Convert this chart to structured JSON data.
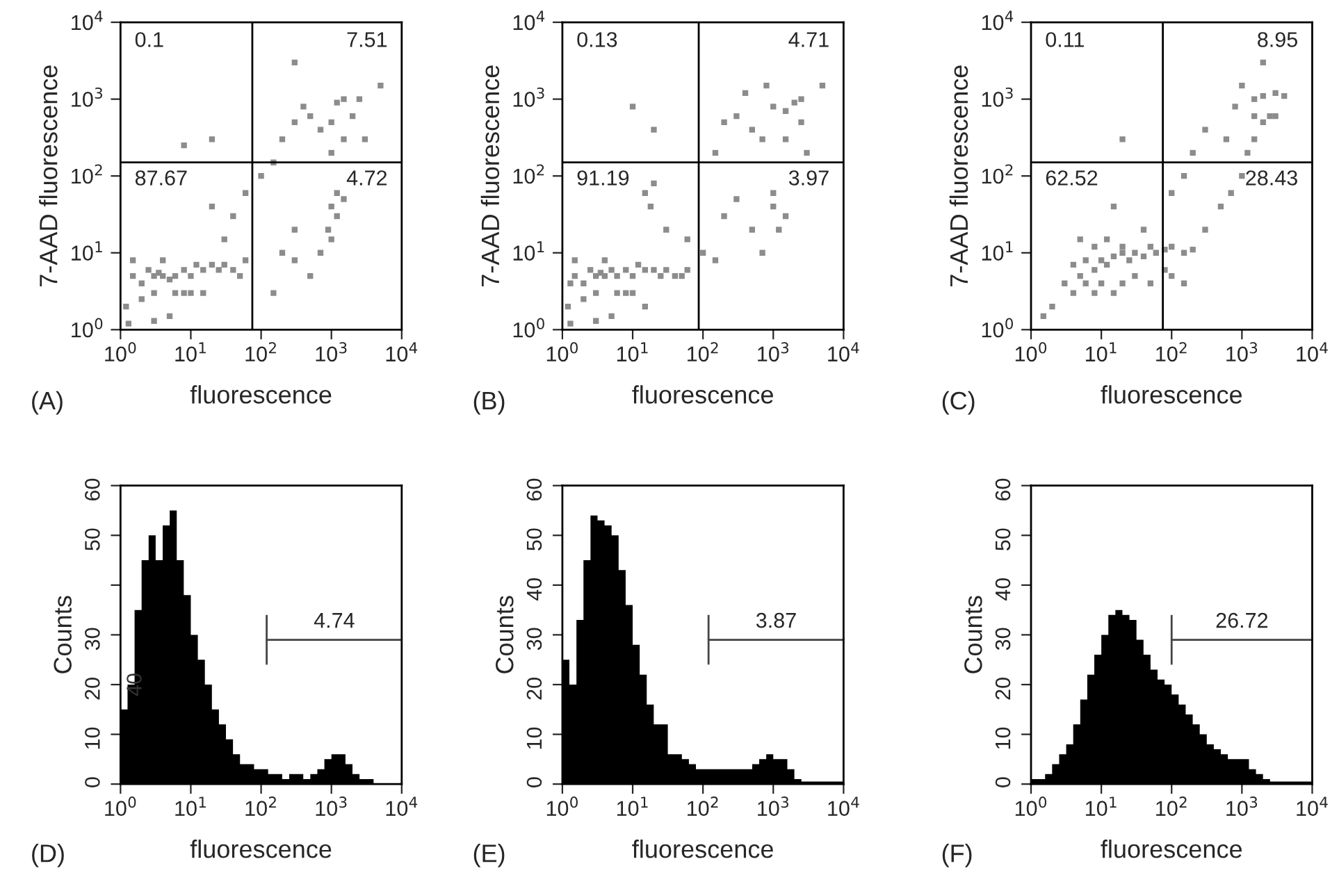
{
  "chart_data": [
    {
      "type": "scatter",
      "xlabel": "fluorescence",
      "ylabel": "7-AAD fluorescence",
      "log": "xy",
      "xlim": [
        1,
        10000
      ],
      "ylim": [
        1,
        10000
      ],
      "marker": "square",
      "xticks": [
        {
          "value": 1,
          "label": "10$^{0}$"
        },
        {
          "value": 10,
          "label": "10$^{1}$"
        },
        {
          "value": 100,
          "label": "10$^{2}$"
        },
        {
          "value": 1000,
          "label": "10$^{3}$"
        },
        {
          "value": 10000,
          "label": "10$^{4}$"
        }
      ],
      "yticks": [
        {
          "value": 1,
          "label": "10$^{0}$"
        },
        {
          "value": 10,
          "label": "10$^{1}$"
        },
        {
          "value": 100,
          "label": "10$^{2}$"
        },
        {
          "value": 1000,
          "label": "10$^{3}$"
        },
        {
          "value": 10000,
          "label": "10$^{4}$"
        }
      ],
      "series": [
        {
          "color": "#8c8c8c",
          "x": [
            1.5,
            2,
            2.5,
            3,
            3.5,
            4,
            5,
            6,
            8,
            10,
            12,
            15,
            20,
            25,
            30,
            40,
            1.2,
            1.5,
            2,
            3,
            4,
            6,
            8,
            1.3,
            3,
            5,
            10,
            15,
            50,
            60,
            30,
            40,
            20,
            60,
            100,
            150,
            200,
            300,
            400,
            500,
            700,
            1000,
            1200,
            1500,
            2000,
            1500,
            1000,
            1200,
            1000,
            1200,
            1500,
            900,
            1000,
            300,
            200,
            500,
            700,
            2500,
            3000,
            300,
            20,
            8,
            5000,
            150,
            300
          ],
          "values": [
            5,
            4,
            6,
            5,
            5.5,
            5,
            4.5,
            5,
            6,
            5,
            7,
            6,
            7,
            6,
            7,
            6,
            2,
            8,
            2.5,
            3,
            8,
            3,
            3,
            1.2,
            1.3,
            1.5,
            3,
            3,
            5,
            8,
            15,
            30,
            40,
            60,
            100,
            150,
            300,
            500,
            800,
            600,
            400,
            500,
            900,
            1000,
            600,
            300,
            200,
            60,
            40,
            30,
            50,
            20,
            15,
            20,
            10,
            5,
            10,
            1000,
            300,
            3000,
            300,
            250,
            1500,
            3,
            8
          ]
        }
      ],
      "ref_lines": [
        {
          "axis": "x",
          "value": 75,
          "color": "#000000"
        },
        {
          "axis": "y",
          "value": 150,
          "color": "#000000"
        }
      ],
      "annotations": [
        "0.1",
        "7.51",
        "87.67",
        "4.72",
        "(A)"
      ]
    },
    {
      "type": "scatter",
      "xlabel": "fluorescence",
      "ylabel": "7-AAD fluorescence",
      "log": "xy",
      "xlim": [
        1,
        10000
      ],
      "ylim": [
        1,
        10000
      ],
      "marker": "square",
      "xticks": [
        {
          "value": 1,
          "label": "10$^{0}$"
        },
        {
          "value": 10,
          "label": "10$^{1}$"
        },
        {
          "value": 100,
          "label": "10$^{2}$"
        },
        {
          "value": 1000,
          "label": "10$^{3}$"
        },
        {
          "value": 10000,
          "label": "10$^{4}$"
        }
      ],
      "yticks": [
        {
          "value": 1,
          "label": "10$^{0}$"
        },
        {
          "value": 10,
          "label": "10$^{1}$"
        },
        {
          "value": 100,
          "label": "10$^{2}$"
        },
        {
          "value": 1000,
          "label": "10$^{3}$"
        },
        {
          "value": 10000,
          "label": "10$^{4}$"
        }
      ],
      "series": [
        {
          "color": "#8c8c8c",
          "x": [
            1.3,
            1.5,
            2,
            2.5,
            3,
            3.5,
            4,
            5,
            6,
            8,
            10,
            12,
            15,
            20,
            25,
            30,
            40,
            1.2,
            1.5,
            2,
            3,
            4,
            6,
            8,
            1.3,
            3,
            5,
            10,
            15,
            50,
            60,
            15,
            20,
            18,
            30,
            60,
            100,
            150,
            200,
            300,
            500,
            700,
            1000,
            1500,
            2000,
            2500,
            1500,
            1000,
            1500,
            1200,
            1000,
            200,
            300,
            500,
            700,
            150,
            2500,
            3000,
            20,
            10,
            5000,
            400,
            800
          ],
          "values": [
            4,
            5,
            4,
            6,
            5,
            5.5,
            5,
            6,
            5,
            6,
            5,
            7,
            6,
            6,
            5,
            6,
            5,
            2,
            8,
            2.5,
            3,
            8,
            3,
            3,
            1.2,
            1.3,
            1.5,
            3,
            2,
            5,
            6,
            60,
            80,
            40,
            20,
            15,
            10,
            200,
            500,
            600,
            400,
            300,
            800,
            700,
            900,
            500,
            300,
            40,
            30,
            20,
            60,
            30,
            50,
            20,
            10,
            8,
            1000,
            200,
            400,
            800,
            1500,
            1200,
            1500
          ]
        }
      ],
      "ref_lines": [
        {
          "axis": "x",
          "value": 87,
          "color": "#000000"
        },
        {
          "axis": "y",
          "value": 150,
          "color": "#000000"
        }
      ],
      "annotations": [
        "0.13",
        "4.71",
        "91.19",
        "3.97",
        "(B)"
      ]
    },
    {
      "type": "scatter",
      "xlabel": "fluorescence",
      "ylabel": "7-AAD fluorescence",
      "log": "xy",
      "xlim": [
        1,
        10000
      ],
      "ylim": [
        1,
        10000
      ],
      "marker": "square",
      "xticks": [
        {
          "value": 1,
          "label": "10$^{0}$"
        },
        {
          "value": 10,
          "label": "10$^{1}$"
        },
        {
          "value": 100,
          "label": "10$^{2}$"
        },
        {
          "value": 1000,
          "label": "10$^{3}$"
        },
        {
          "value": 10000,
          "label": "10$^{4}$"
        }
      ],
      "yticks": [
        {
          "value": 1,
          "label": "10$^{0}$"
        },
        {
          "value": 10,
          "label": "10$^{1}$"
        },
        {
          "value": 100,
          "label": "10$^{2}$"
        },
        {
          "value": 1000,
          "label": "10$^{3}$"
        },
        {
          "value": 10000,
          "label": "10$^{4}$"
        }
      ],
      "series": [
        {
          "color": "#8c8c8c",
          "x": [
            4,
            5,
            6,
            8,
            10,
            12,
            15,
            20,
            25,
            30,
            40,
            50,
            60,
            80,
            100,
            150,
            200,
            3,
            4,
            6,
            8,
            10,
            15,
            20,
            30,
            50,
            80,
            100,
            150,
            5,
            8,
            12,
            20,
            40,
            2,
            1.5,
            300,
            500,
            700,
            1000,
            1200,
            1500,
            2000,
            1500,
            2000,
            3000,
            4000,
            1500,
            2500,
            3000,
            1000,
            800,
            600,
            200,
            150,
            300,
            20,
            15,
            100,
            2000
          ],
          "values": [
            7,
            5,
            8,
            6,
            8,
            7,
            9,
            10,
            8,
            10,
            9,
            12,
            10,
            11,
            12,
            10,
            11,
            4,
            3,
            4,
            3,
            4,
            3,
            4,
            5,
            4,
            6,
            5,
            4,
            15,
            12,
            15,
            12,
            20,
            2,
            1.5,
            20,
            40,
            60,
            100,
            200,
            300,
            500,
            600,
            1100,
            1200,
            1100,
            1000,
            600,
            600,
            1500,
            800,
            300,
            200,
            100,
            400,
            300,
            40,
            60,
            3000
          ]
        }
      ],
      "ref_lines": [
        {
          "axis": "x",
          "value": 75,
          "color": "#000000"
        },
        {
          "axis": "y",
          "value": 150,
          "color": "#000000"
        }
      ],
      "annotations": [
        "0.11",
        "8.95",
        "62.52",
        "28.43",
        "(C)"
      ]
    },
    {
      "type": "histogram",
      "xlabel": "fluorescence",
      "ylabel": "Counts",
      "log": "x",
      "xlim": [
        1,
        10000
      ],
      "ylim": [
        0,
        60
      ],
      "xticks": [
        {
          "value": 1,
          "label": "10$^{0}$"
        },
        {
          "value": 10,
          "label": "10$^{1}$"
        },
        {
          "value": 100,
          "label": "10$^{2}$"
        },
        {
          "value": 1000,
          "label": "10$^{3}$"
        },
        {
          "value": 10000,
          "label": "10$^{4}$"
        }
      ],
      "yticks": [
        0,
        10,
        20,
        30,
        {
          "value": 40,
          "label": null
        },
        50,
        60
      ],
      "bins": [
        1,
        1.259,
        1.585,
        1.995,
        2.512,
        3.162,
        3.981,
        5.012,
        6.31,
        7.943,
        10,
        12.59,
        15.85,
        19.95,
        25.12,
        31.62,
        39.81,
        50.12,
        63.1,
        79.43,
        100,
        125.9,
        158.5,
        199.5,
        251.2,
        316.2,
        398.1,
        501.2,
        631,
        794.3,
        1000,
        1259,
        1585,
        1995,
        2512,
        3162,
        3981,
        5012,
        6310,
        7943,
        10000
      ],
      "values": [
        15,
        20,
        35,
        45,
        50,
        45,
        52,
        55,
        45,
        38,
        30,
        25,
        20,
        15,
        12,
        9,
        6,
        4,
        4,
        3,
        3,
        2,
        2,
        1,
        2,
        2,
        1,
        2,
        3,
        5,
        6,
        6,
        4,
        2,
        1,
        1,
        0,
        0,
        0,
        0
      ],
      "color": "#000000",
      "series": [
        {
          "type": "line",
          "color": "#444444",
          "x": [
            120,
            10000
          ],
          "values": [
            29,
            29
          ],
          "errors": [
            5,
            null
          ]
        }
      ],
      "annotations": [
        "(D)",
        {
          "text": "40",
          "x": 1.2,
          "y": 20
        },
        {
          "text": "4.74",
          "x": 1100,
          "y": 29
        }
      ]
    },
    {
      "type": "histogram",
      "xlabel": "fluorescence",
      "ylabel": "Counts",
      "log": "x",
      "xlim": [
        1,
        10000
      ],
      "ylim": [
        0,
        60
      ],
      "xticks": [
        {
          "value": 1,
          "label": "10$^{0}$"
        },
        {
          "value": 10,
          "label": "10$^{1}$"
        },
        {
          "value": 100,
          "label": "10$^{2}$"
        },
        {
          "value": 1000,
          "label": "10$^{3}$"
        },
        {
          "value": 10000,
          "label": "10$^{4}$"
        }
      ],
      "yticks": [
        0,
        10,
        20,
        30,
        40,
        50,
        60
      ],
      "bins": [
        1,
        1.259,
        1.585,
        1.995,
        2.512,
        3.162,
        3.981,
        5.012,
        6.31,
        7.943,
        10,
        12.59,
        15.85,
        19.95,
        25.12,
        31.62,
        39.81,
        50.12,
        63.1,
        79.43,
        100,
        125.9,
        158.5,
        199.5,
        251.2,
        316.2,
        398.1,
        501.2,
        631,
        794.3,
        1000,
        1259,
        1585,
        1995,
        2512,
        3162,
        3981,
        5012,
        6310,
        7943,
        10000
      ],
      "values": [
        25,
        20,
        33,
        45,
        54,
        53,
        52,
        50,
        43,
        36,
        28,
        22,
        16,
        12,
        12,
        6,
        6,
        5,
        4,
        3,
        3,
        3,
        3,
        3,
        3,
        3,
        3,
        4,
        5,
        6,
        5,
        5,
        3,
        1,
        0.5,
        0.5,
        0.5,
        0.5,
        0.5,
        0.5
      ],
      "color": "#000000",
      "series": [
        {
          "type": "line",
          "color": "#444444",
          "x": [
            120,
            10000
          ],
          "values": [
            29,
            29
          ],
          "errors": [
            5,
            null
          ]
        }
      ],
      "annotations": [
        "(E)",
        {
          "text": "3.87",
          "x": 1100,
          "y": 29
        }
      ]
    },
    {
      "type": "histogram",
      "xlabel": "fluorescence",
      "ylabel": "Counts",
      "log": "x",
      "xlim": [
        1,
        10000
      ],
      "ylim": [
        0,
        60
      ],
      "xticks": [
        {
          "value": 1,
          "label": "10$^{0}$"
        },
        {
          "value": 10,
          "label": "10$^{1}$"
        },
        {
          "value": 100,
          "label": "10$^{2}$"
        },
        {
          "value": 1000,
          "label": "10$^{3}$"
        },
        {
          "value": 10000,
          "label": "10$^{4}$"
        }
      ],
      "yticks": [
        0,
        10,
        20,
        30,
        40,
        50,
        60
      ],
      "bins": [
        1,
        1.259,
        1.585,
        1.995,
        2.512,
        3.162,
        3.981,
        5.012,
        6.31,
        7.943,
        10,
        12.59,
        15.85,
        19.95,
        25.12,
        31.62,
        39.81,
        50.12,
        63.1,
        79.43,
        100,
        125.9,
        158.5,
        199.5,
        251.2,
        316.2,
        398.1,
        501.2,
        631,
        794.3,
        1000,
        1259,
        1585,
        1995,
        2512,
        3162,
        3981,
        5012,
        6310,
        7943,
        10000
      ],
      "values": [
        1,
        1,
        2,
        4,
        6,
        8,
        12,
        17,
        22,
        26,
        30,
        34,
        35,
        34,
        33,
        29,
        26,
        23,
        21,
        20,
        18,
        16,
        14,
        12,
        10,
        8,
        7,
        6,
        5,
        5,
        5,
        3,
        2,
        1,
        0.5,
        0.5,
        0.5,
        0.5,
        0.5,
        0.5
      ],
      "color": "#000000",
      "series": [
        {
          "type": "line",
          "color": "#444444",
          "x": [
            100,
            10000
          ],
          "values": [
            29,
            29
          ],
          "errors": [
            5,
            null
          ]
        }
      ],
      "annotations": [
        "(F)",
        {
          "text": "26.72",
          "x": 1000,
          "y": 29
        }
      ]
    }
  ]
}
